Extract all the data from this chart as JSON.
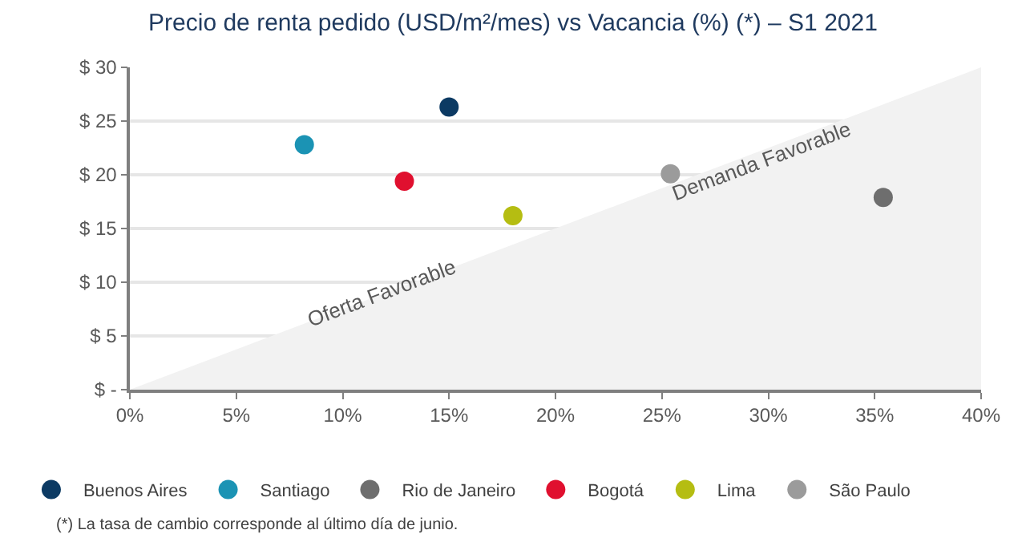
{
  "chart_data": {
    "type": "scatter",
    "title": "Precio de renta pedido (USD/m²/mes) vs Vacancia (%) (*) – S1 2021",
    "series": [
      {
        "type": "area",
        "color": "#f2f2f2",
        "marker": "none",
        "x": [
          0,
          40
        ],
        "values": [
          0,
          30
        ]
      },
      {
        "name": "Buenos Aires",
        "color": "#0c3a63",
        "x": [
          15.0
        ],
        "values": [
          26.3
        ]
      },
      {
        "name": "Santiago",
        "color": "#1b93b4",
        "x": [
          8.2
        ],
        "values": [
          22.8
        ]
      },
      {
        "name": "Rio de Janeiro",
        "color": "#6e6e6e",
        "x": [
          35.4
        ],
        "values": [
          17.9
        ]
      },
      {
        "name": "Bogotá",
        "color": "#e0102f",
        "x": [
          12.9
        ],
        "values": [
          19.4
        ]
      },
      {
        "name": "Lima",
        "color": "#b5bd12",
        "x": [
          18.0
        ],
        "values": [
          16.2
        ]
      },
      {
        "name": "São Paulo",
        "color": "#9b9b9b",
        "x": [
          25.4
        ],
        "values": [
          20.1
        ]
      }
    ],
    "xlim": [
      0,
      40
    ],
    "xticks": [
      {
        "value": 0,
        "label": "0%"
      },
      {
        "value": 5,
        "label": "5%"
      },
      {
        "value": 10,
        "label": "10%"
      },
      {
        "value": 15,
        "label": "15%"
      },
      {
        "value": 20,
        "label": "20%"
      },
      {
        "value": 25,
        "label": "25%"
      },
      {
        "value": 30,
        "label": "30%"
      },
      {
        "value": 35,
        "label": "35%"
      },
      {
        "value": 40,
        "label": "40%"
      }
    ],
    "ylim": [
      0,
      30
    ],
    "yticks": [
      {
        "value": 0,
        "label": "$ -"
      },
      {
        "value": 5,
        "label": "$ 5"
      },
      {
        "value": 10,
        "label": "$ 10"
      },
      {
        "value": 15,
        "label": "$ 15"
      },
      {
        "value": 20,
        "label": "$ 20"
      },
      {
        "value": 25,
        "label": "$ 25"
      },
      {
        "value": 30,
        "label": "$ 30"
      }
    ],
    "annotations": [
      "Oferta Favorable",
      "Demanda Favorable",
      "(*) La tasa de cambio corresponde al último día de junio."
    ],
    "grid": "y",
    "legend": "bottom",
    "marker": "circle"
  }
}
